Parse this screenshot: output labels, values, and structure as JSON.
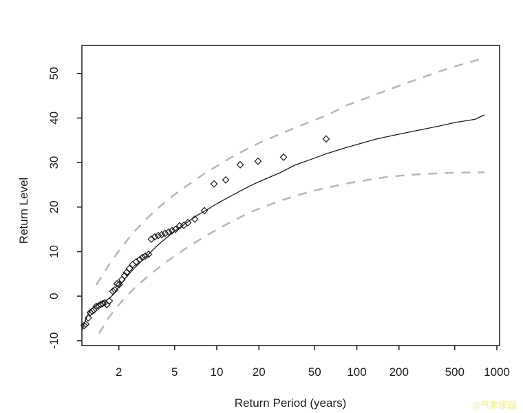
{
  "watermark": {
    "text": "@气象家园",
    "color": "#f2f2a8"
  },
  "colors": {
    "background": "#ffffff",
    "axis": "#2a2a2a",
    "fitted_line": "#1a1a1a",
    "confidence_dashed": "#b9b9b9",
    "marker": "#1a1a1a"
  },
  "chart_data": {
    "type": "line",
    "title": "",
    "xlabel": "Return Period (years)",
    "ylabel": "Return Level",
    "x_scale": "log10",
    "grid": "off",
    "legend": "none",
    "x_ticks": [
      2,
      5,
      10,
      20,
      50,
      100,
      200,
      500,
      1000
    ],
    "y_ticks": [
      -10,
      0,
      10,
      20,
      30,
      40,
      50
    ],
    "xlim": [
      1.089,
      1046
    ],
    "ylim": [
      -11.1,
      56.3
    ],
    "series": [
      {
        "name": "fitted-return-level",
        "style": "solid",
        "color": "#1a1a1a",
        "width": 1.3,
        "points": [
          [
            1.09,
            -7.7
          ],
          [
            1.13,
            -6.2
          ],
          [
            1.17,
            -5.0
          ],
          [
            1.21,
            -4.0
          ],
          [
            1.26,
            -3.1
          ],
          [
            1.32,
            -2.5
          ],
          [
            1.4,
            -2.0
          ],
          [
            1.5,
            -1.5
          ],
          [
            1.6,
            -1.1
          ],
          [
            1.71,
            -0.5
          ],
          [
            1.84,
            0.5
          ],
          [
            1.96,
            1.7
          ],
          [
            2.1,
            2.9
          ],
          [
            2.25,
            4.2
          ],
          [
            2.43,
            5.4
          ],
          [
            2.66,
            6.7
          ],
          [
            2.91,
            7.9
          ],
          [
            3.19,
            9.1
          ],
          [
            3.53,
            10.5
          ],
          [
            3.9,
            11.8
          ],
          [
            4.38,
            13.1
          ],
          [
            4.91,
            14.4
          ],
          [
            5.56,
            15.6
          ],
          [
            6.36,
            16.9
          ],
          [
            7.38,
            18.3
          ],
          [
            8.64,
            19.5
          ],
          [
            10.2,
            20.9
          ],
          [
            12.3,
            22.3
          ],
          [
            14.9,
            23.7
          ],
          [
            18.2,
            25.1
          ],
          [
            22.6,
            26.4
          ],
          [
            28.3,
            27.7
          ],
          [
            36.0,
            29.4
          ],
          [
            46.1,
            30.6
          ],
          [
            59.8,
            31.9
          ],
          [
            78.5,
            33.1
          ],
          [
            104,
            34.2
          ],
          [
            139,
            35.3
          ],
          [
            189,
            36.2
          ],
          [
            260,
            37.1
          ],
          [
            361,
            38.0
          ],
          [
            507,
            39.0
          ],
          [
            698,
            39.7
          ],
          [
            816,
            40.7
          ]
        ]
      },
      {
        "name": "upper-confidence-bound",
        "style": "dashed",
        "color": "#b9b9b9",
        "width": 2.6,
        "points": [
          [
            1.38,
            2.5
          ],
          [
            1.48,
            4.0
          ],
          [
            1.6,
            5.7
          ],
          [
            1.75,
            7.6
          ],
          [
            1.94,
            9.6
          ],
          [
            2.17,
            11.6
          ],
          [
            2.46,
            13.8
          ],
          [
            2.82,
            15.8
          ],
          [
            3.26,
            17.8
          ],
          [
            3.82,
            19.8
          ],
          [
            4.54,
            21.8
          ],
          [
            5.44,
            23.7
          ],
          [
            6.6,
            25.5
          ],
          [
            8.07,
            27.4
          ],
          [
            10.0,
            29.2
          ],
          [
            12.6,
            31.1
          ],
          [
            15.9,
            32.8
          ],
          [
            20.4,
            34.5
          ],
          [
            26.4,
            36.0
          ],
          [
            34.8,
            37.6
          ],
          [
            46.1,
            39.1
          ],
          [
            61.8,
            40.7
          ],
          [
            84,
            42.8
          ],
          [
            115,
            44.4
          ],
          [
            160,
            46.1
          ],
          [
            225,
            47.8
          ],
          [
            320,
            49.5
          ],
          [
            454,
            51.2
          ],
          [
            622,
            52.4
          ],
          [
            816,
            53.5
          ]
        ]
      },
      {
        "name": "lower-confidence-bound",
        "style": "dashed",
        "color": "#b9b9b9",
        "width": 2.6,
        "points": [
          [
            1.44,
            -8.4
          ],
          [
            1.55,
            -6.8
          ],
          [
            1.67,
            -5.1
          ],
          [
            1.83,
            -3.4
          ],
          [
            2.03,
            -1.7
          ],
          [
            2.27,
            0.0
          ],
          [
            2.57,
            1.7
          ],
          [
            2.95,
            3.4
          ],
          [
            3.41,
            5.1
          ],
          [
            4.0,
            6.8
          ],
          [
            4.74,
            8.5
          ],
          [
            5.68,
            10.2
          ],
          [
            6.89,
            11.9
          ],
          [
            8.44,
            13.6
          ],
          [
            10.5,
            15.3
          ],
          [
            13.1,
            16.9
          ],
          [
            16.7,
            18.6
          ],
          [
            21.4,
            20.0
          ],
          [
            27.7,
            21.3
          ],
          [
            36.4,
            22.5
          ],
          [
            48.3,
            23.6
          ],
          [
            64.6,
            24.5
          ],
          [
            88,
            25.4
          ],
          [
            120,
            26.1
          ],
          [
            167,
            26.8
          ],
          [
            235,
            27.2
          ],
          [
            334,
            27.5
          ],
          [
            481,
            27.7
          ],
          [
            698,
            27.8
          ],
          [
            816,
            27.8
          ]
        ]
      }
    ],
    "empirical_points": {
      "name": "empirical-return-levels",
      "marker": "diamond",
      "color": "#1a1a1a",
      "points": [
        [
          1.13,
          -6.6
        ],
        [
          1.16,
          -6.3
        ],
        [
          1.21,
          -4.9
        ],
        [
          1.25,
          -3.7
        ],
        [
          1.29,
          -3.4
        ],
        [
          1.33,
          -3.1
        ],
        [
          1.38,
          -2.3
        ],
        [
          1.43,
          -2.2
        ],
        [
          1.48,
          -1.9
        ],
        [
          1.53,
          -1.7
        ],
        [
          1.58,
          -1.5
        ],
        [
          1.64,
          -1.9
        ],
        [
          1.71,
          -1.1
        ],
        [
          1.81,
          1.1
        ],
        [
          1.87,
          1.4
        ],
        [
          1.94,
          2.8
        ],
        [
          2.01,
          2.6
        ],
        [
          2.1,
          3.7
        ],
        [
          2.2,
          4.6
        ],
        [
          2.27,
          5.3
        ],
        [
          2.38,
          6.2
        ],
        [
          2.51,
          7.1
        ],
        [
          2.66,
          7.7
        ],
        [
          2.82,
          8.2
        ],
        [
          2.95,
          8.7
        ],
        [
          3.09,
          9.0
        ],
        [
          3.26,
          9.4
        ],
        [
          3.41,
          12.8
        ],
        [
          3.61,
          13.3
        ],
        [
          3.82,
          13.6
        ],
        [
          4.04,
          13.8
        ],
        [
          4.28,
          14.1
        ],
        [
          4.54,
          14.4
        ],
        [
          4.8,
          14.7
        ],
        [
          5.08,
          15.0
        ],
        [
          5.44,
          15.8
        ],
        [
          5.82,
          15.9
        ],
        [
          6.22,
          16.5
        ],
        [
          6.97,
          17.3
        ],
        [
          8.16,
          19.2
        ],
        [
          9.56,
          25.2
        ],
        [
          11.6,
          26.1
        ],
        [
          14.7,
          29.5
        ],
        [
          19.7,
          30.3
        ],
        [
          30.0,
          31.2
        ],
        [
          60.4,
          35.3
        ]
      ]
    }
  }
}
